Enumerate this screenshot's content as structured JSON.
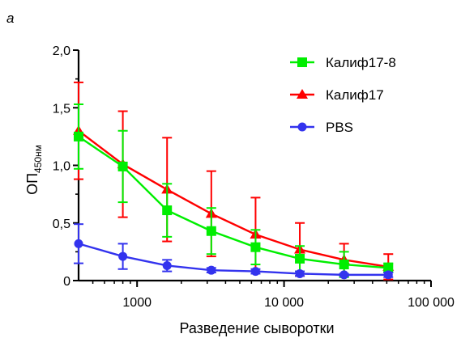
{
  "chart_data": {
    "type": "line",
    "panel_label": "a",
    "xlabel": "Разведение сыворотки",
    "ylabel_main": "ОП",
    "ylabel_sub": "450нм",
    "x_scale": "log",
    "xlim": [
      400,
      100000
    ],
    "ylim": [
      0,
      2.0
    ],
    "x_ticks": [
      {
        "value": 1000,
        "label": "1000"
      },
      {
        "value": 10000,
        "label": "10 000"
      },
      {
        "value": 100000,
        "label": "100 000"
      }
    ],
    "y_ticks": [
      {
        "value": 0,
        "label": "0"
      },
      {
        "value": 0.5,
        "label": "0,5"
      },
      {
        "value": 1.0,
        "label": "1,0"
      },
      {
        "value": 1.5,
        "label": "1,5"
      },
      {
        "value": 2.0,
        "label": "2,0"
      }
    ],
    "legend_position": "top-right",
    "x": [
      400,
      800,
      1600,
      3200,
      6400,
      12800,
      25600,
      51200
    ],
    "series": [
      {
        "name": "Калиф17",
        "color": "#ff0000",
        "marker": "triangle",
        "values": [
          1.3,
          1.01,
          0.79,
          0.58,
          0.4,
          0.27,
          0.18,
          0.12
        ],
        "errors": [
          0.42,
          0.46,
          0.45,
          0.37,
          0.32,
          0.23,
          0.14,
          0.11
        ]
      },
      {
        "name": "Калиф17-8",
        "color": "#00ee00",
        "marker": "square",
        "values": [
          1.25,
          0.99,
          0.61,
          0.43,
          0.29,
          0.19,
          0.14,
          0.11
        ],
        "errors": [
          0.28,
          0.31,
          0.23,
          0.2,
          0.15,
          0.11,
          0.11,
          0.04
        ]
      },
      {
        "name": "PBS",
        "color": "#3333ee",
        "marker": "circle",
        "values": [
          0.32,
          0.21,
          0.13,
          0.09,
          0.08,
          0.06,
          0.05,
          0.05
        ],
        "errors": [
          0.17,
          0.11,
          0.05,
          0.02,
          0.02,
          0.02,
          0.01,
          0.02
        ]
      }
    ],
    "legend": [
      {
        "name": "Калиф17-8",
        "color": "#00ee00",
        "marker": "square"
      },
      {
        "name": "Калиф17",
        "color": "#ff0000",
        "marker": "triangle"
      },
      {
        "name": "PBS",
        "color": "#3333ee",
        "marker": "circle"
      }
    ]
  }
}
